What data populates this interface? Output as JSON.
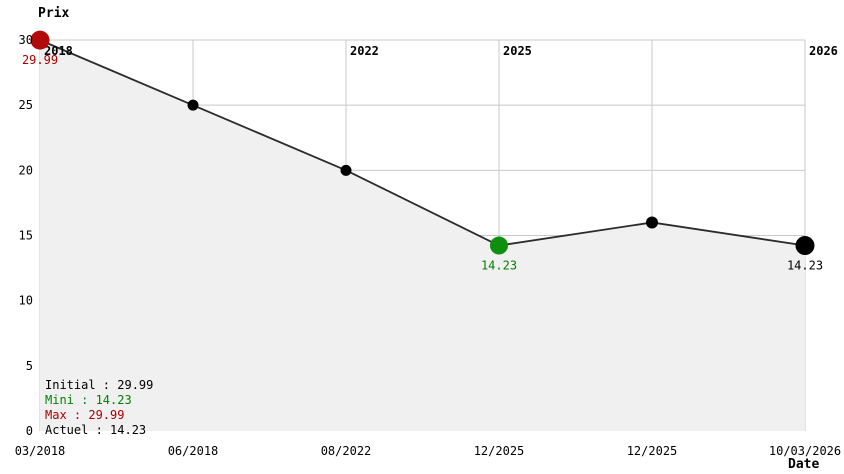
{
  "title": "Prix",
  "xlabel": "Date",
  "chart_data": {
    "type": "area",
    "title": "Prix",
    "xlabel": "Date",
    "ylabel": "Prix",
    "ylim": [
      0,
      30
    ],
    "y_ticks": [
      0,
      5,
      10,
      15,
      20,
      25,
      30
    ],
    "grid": true,
    "grid_color": "#c8c8c8",
    "area_fill": "#f0f0f0",
    "line_color": "#2b2b2b",
    "background": "#ffffff",
    "points": [
      {
        "x_label": "03/2018",
        "value": 29.99,
        "dot_color": "#b20a0a",
        "dot_radius": 9.5,
        "label": "29.99",
        "label_color": "#aa0000"
      },
      {
        "x_label": "06/2018",
        "value": 25,
        "dot_color": "#000000",
        "dot_radius": 5.5,
        "label": "",
        "label_color": ""
      },
      {
        "x_label": "08/2022",
        "value": 20,
        "dot_color": "#000000",
        "dot_radius": 5.5,
        "label": "",
        "label_color": ""
      },
      {
        "x_label": "12/2025",
        "value": 14.23,
        "dot_color": "#0f8f0f",
        "dot_radius": 9,
        "label": "14.23",
        "label_color": "#008000"
      },
      {
        "x_label": "12/2025",
        "value": 16.0,
        "dot_color": "#000000",
        "dot_radius": 6,
        "label": "",
        "label_color": ""
      },
      {
        "x_label": "10/03/2026",
        "value": 14.23,
        "dot_color": "#000000",
        "dot_radius": 9.5,
        "label": "14.23",
        "label_color": "#000000"
      }
    ],
    "year_labels": [
      {
        "text": "2018",
        "point_index": 0
      },
      {
        "text": "2022",
        "point_index": 2
      },
      {
        "text": "2025",
        "point_index": 3
      },
      {
        "text": "2026",
        "point_index": 5
      }
    ],
    "legend_position": "bottom-left"
  },
  "legend": {
    "separator": " : ",
    "lines": [
      {
        "name": "Initial",
        "value": "29.99",
        "color": "#000000"
      },
      {
        "name": "Mini",
        "value": "14.23",
        "color": "#008000"
      },
      {
        "name": "Max",
        "value": "29.99",
        "color": "#aa0000"
      },
      {
        "name": "Actuel",
        "value": "14.23",
        "color": "#000000"
      }
    ]
  }
}
